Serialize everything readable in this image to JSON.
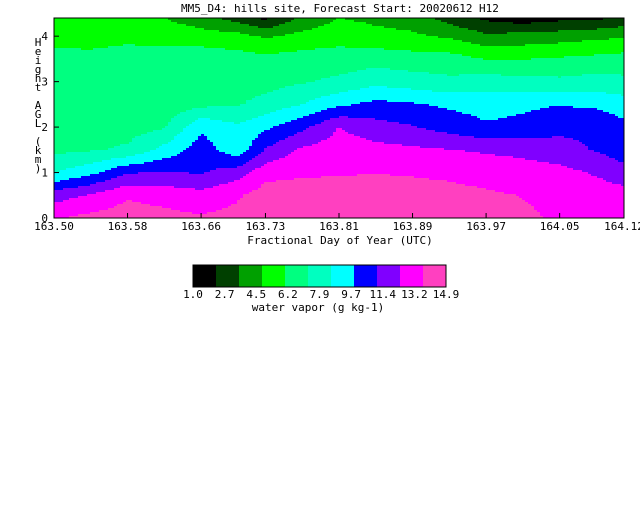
{
  "chart_data": {
    "type": "heatmap",
    "title": "MM5_D4: hills site,  Forecast Start: 20020612 H12",
    "xlabel": "Fractional Day of Year (UTC)",
    "ylabel": "Height AGL (km)",
    "xlim": [
      163.5,
      164.12
    ],
    "ylim": [
      0,
      4.4
    ],
    "x_ticks": [
      "163.50",
      "163.58",
      "163.66",
      "163.73",
      "163.81",
      "163.89",
      "163.97",
      "164.05",
      "164.12"
    ],
    "y_ticks": [
      "0",
      "1",
      "2",
      "3",
      "4"
    ],
    "colorbar": {
      "label": "water vapor (g kg-1)",
      "ticks": [
        "1.0",
        "2.7",
        "4.5",
        "6.2",
        "7.9",
        "9.7",
        "11.4",
        "13.2",
        "14.9"
      ],
      "levels": [
        1.0,
        1.87,
        2.7,
        3.6,
        4.5,
        5.35,
        6.2,
        7.05,
        7.9,
        8.8,
        9.7,
        10.55,
        11.4,
        12.3,
        13.2,
        14.05,
        14.9
      ],
      "colors": [
        "#000000",
        "#004000",
        "#00a000",
        "#00ff00",
        "#00ff80",
        "#00ffc0",
        "#00ffff",
        "#0000ff",
        "#8000ff",
        "#ff00ff",
        "#ff40c0"
      ]
    },
    "x": [
      163.5,
      163.54,
      163.58,
      163.62,
      163.66,
      163.7,
      163.73,
      163.77,
      163.81,
      163.85,
      163.89,
      163.93,
      163.97,
      164.01,
      164.05,
      164.09,
      164.12
    ],
    "y": [
      0,
      0.5,
      1.0,
      1.5,
      2.0,
      2.5,
      3.0,
      3.5,
      4.0,
      4.4
    ],
    "z": [
      [
        13.5,
        14.0,
        14.2,
        14.0,
        13.8,
        14.0,
        14.5,
        14.6,
        14.6,
        14.5,
        14.3,
        14.2,
        14.0,
        13.8,
        13.5,
        13.2,
        13.0
      ],
      [
        11.8,
        12.5,
        13.5,
        13.2,
        12.8,
        13.5,
        14.2,
        14.4,
        14.4,
        14.3,
        14.2,
        14.0,
        13.8,
        13.6,
        13.4,
        13.2,
        13.0
      ],
      [
        8.5,
        9.5,
        11.0,
        11.2,
        11.0,
        11.8,
        13.2,
        13.4,
        13.5,
        13.6,
        13.5,
        13.4,
        13.2,
        13.0,
        12.8,
        12.2,
        11.5
      ],
      [
        7.0,
        7.2,
        7.5,
        9.0,
        10.5,
        9.0,
        11.2,
        12.6,
        13.0,
        12.8,
        12.6,
        12.4,
        12.2,
        12.0,
        11.6,
        11.0,
        10.5
      ],
      [
        7.2,
        7.0,
        6.8,
        7.2,
        9.6,
        8.8,
        9.6,
        10.8,
        12.4,
        11.6,
        11.2,
        10.6,
        10.0,
        10.2,
        10.8,
        10.8,
        10.2
      ],
      [
        7.0,
        6.5,
        6.4,
        6.5,
        7.0,
        7.2,
        7.8,
        8.6,
        9.6,
        10.2,
        10.0,
        9.6,
        9.4,
        9.6,
        9.8,
        9.6,
        9.2
      ],
      [
        7.0,
        6.4,
        6.2,
        6.4,
        6.8,
        6.8,
        6.8,
        7.2,
        7.6,
        8.2,
        7.9,
        7.6,
        7.9,
        7.8,
        7.6,
        7.8,
        7.6
      ],
      [
        6.5,
        6.4,
        6.5,
        6.6,
        6.8,
        6.6,
        6.4,
        6.6,
        6.6,
        6.8,
        6.6,
        6.6,
        6.0,
        6.0,
        6.2,
        6.4,
        6.6
      ],
      [
        5.5,
        5.6,
        5.8,
        5.6,
        5.4,
        5.2,
        4.6,
        5.2,
        5.6,
        5.2,
        5.0,
        4.6,
        3.8,
        4.0,
        4.2,
        4.5,
        4.6
      ],
      [
        5.0,
        5.0,
        5.2,
        4.8,
        4.0,
        3.0,
        2.0,
        3.8,
        4.8,
        4.5,
        4.2,
        3.0,
        2.0,
        1.5,
        1.9,
        2.0,
        2.6
      ]
    ]
  }
}
